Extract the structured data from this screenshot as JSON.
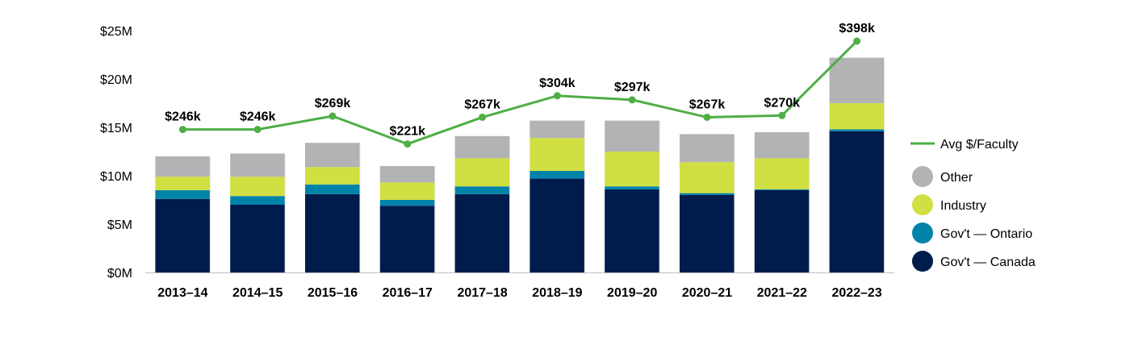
{
  "chart_data": {
    "type": "bar",
    "stacked": true,
    "categories": [
      "2013–14",
      "2014–15",
      "2015–16",
      "2016–17",
      "2017–18",
      "2018–19",
      "2019–20",
      "2020–21",
      "2021–22",
      "2022–23"
    ],
    "series": [
      {
        "name": "Gov't — Canada",
        "color": "#001c4d",
        "values": [
          7.6,
          7.0,
          8.1,
          6.9,
          8.1,
          9.7,
          8.6,
          8.0,
          8.5,
          14.6
        ]
      },
      {
        "name": "Gov't — Ontario",
        "color": "#0083a9",
        "values": [
          0.9,
          0.9,
          1.0,
          0.6,
          0.8,
          0.8,
          0.3,
          0.2,
          0.1,
          0.2
        ]
      },
      {
        "name": "Industry",
        "color": "#d0df41",
        "values": [
          1.4,
          2.0,
          1.8,
          1.8,
          2.9,
          3.4,
          3.6,
          3.2,
          3.2,
          2.7
        ]
      },
      {
        "name": "Other",
        "color": "#b2b3b5",
        "values": [
          2.1,
          2.4,
          2.5,
          1.7,
          2.3,
          1.8,
          3.2,
          2.9,
          2.7,
          4.7
        ]
      }
    ],
    "line": {
      "name": "Avg $/Faculty",
      "color": "#4fae46",
      "values": [
        246,
        246,
        269,
        221,
        267,
        304,
        297,
        267,
        270,
        398
      ],
      "labels": [
        "$246k",
        "$246k",
        "$269k",
        "$221k",
        "$267k",
        "$304k",
        "$297k",
        "$267k",
        "$270k",
        "$398k"
      ]
    },
    "y_axis": {
      "ticks": [
        0,
        5,
        10,
        15,
        20,
        25
      ],
      "tick_labels": [
        "$0M",
        "$5M",
        "$10M",
        "$15M",
        "$20M",
        "$25M"
      ],
      "range": [
        0,
        25
      ]
    },
    "line_axis_range_k": [
      0,
      416
    ],
    "legend": {
      "position": "right",
      "items": [
        "Avg $/Faculty",
        "Other",
        "Industry",
        "Gov't — Ontario",
        "Gov't — Canada"
      ]
    },
    "grid": false
  }
}
